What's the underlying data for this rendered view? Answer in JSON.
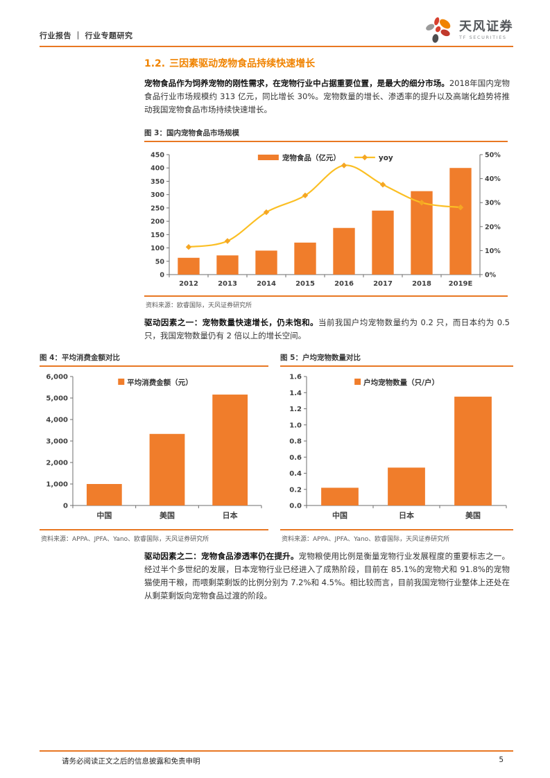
{
  "header": {
    "doc_type": "行业报告",
    "separator": "｜",
    "doc_subtype": "行业专题研究",
    "logo": {
      "name_cn": "天风证券",
      "name_en": "TF SECURITIES"
    }
  },
  "section": {
    "number": "1.2.",
    "title": "三因素驱动宠物食品持续快速增长"
  },
  "paragraphs": {
    "p1_bold": "宠物食品作为饲养宠物的刚性需求，在宠物行业中占据重要位置，是最大的细分市场。",
    "p1_rest": "2018年国内宠物食品行业市场规模约 313 亿元，同比增长 30%。宠物数量的增长、渗透率的提升以及高端化趋势将推动我国宠物食品市场持续快速增长。",
    "p2_bold": "驱动因素之一：宠物数量快速增长，仍未饱和。",
    "p2_rest": "当前我国户均宠物数量约为 0.2 只，而日本约为 0.5 只，我国宠物数量仍有 2 倍以上的增长空间。",
    "p3_bold": "驱动因素之二：宠物食品渗透率仍在提升。",
    "p3_rest": "宠物粮使用比例是衡量宠物行业发展程度的重要标志之一。经过半个多世纪的发展，日本宠物行业已经进入了成熟阶段，目前在 85.1%的宠物犬和 91.8%的宠物猫使用干粮，而喂剩菜剩饭的比例分别为 7.2%和 4.5%。相比较而言，目前我国宠物行业整体上还处在从剩菜剩饭向宠物食品过渡的阶段。"
  },
  "chart_data": [
    {
      "id": "fig3",
      "type": "bar+line",
      "title": "图 3：国内宠物食品市场规模",
      "categories": [
        "2012",
        "2013",
        "2014",
        "2015",
        "2016",
        "2017",
        "2018",
        "2019E"
      ],
      "series": [
        {
          "name": "宠物食品（亿元）",
          "type": "bar",
          "axis": "left",
          "values": [
            63,
            72,
            90,
            120,
            175,
            240,
            313,
            400
          ]
        },
        {
          "name": "yoy",
          "type": "line",
          "axis": "right",
          "values": [
            11.5,
            14,
            26,
            33,
            45.5,
            37.5,
            30,
            28
          ]
        }
      ],
      "left_axis": {
        "min": 0,
        "max": 450,
        "step": 50,
        "format": "int"
      },
      "right_axis": {
        "min": 0,
        "max": 50,
        "step": 10,
        "format": "percent"
      },
      "legend_position": "top",
      "grid": false,
      "source": "资料来源：欧睿国际，天风证券研究所"
    },
    {
      "id": "fig4",
      "type": "bar",
      "title": "图 4：平均消费金额对比",
      "legend": "平均消费金额（元）",
      "categories": [
        "中国",
        "美国",
        "日本"
      ],
      "values": [
        1000,
        3330,
        5160
      ],
      "y_axis": {
        "min": 0,
        "max": 6000,
        "step": 1000,
        "format": "comma"
      },
      "grid": false,
      "source": "资料来源：APPA、JPFA、Yano、欧睿国际，天风证券研究所"
    },
    {
      "id": "fig5",
      "type": "bar",
      "title": "图 5：户均宠物数量对比",
      "legend": "户均宠物数量（只/户）",
      "categories": [
        "中国",
        "日本",
        "美国"
      ],
      "values": [
        0.22,
        0.47,
        1.35
      ],
      "y_axis": {
        "min": 0,
        "max": 1.6,
        "step": 0.2,
        "format": "decimal1"
      },
      "grid": false,
      "source": "资料来源：APPA、JPFA、Yano、欧睿国际，天风证券研究所"
    }
  ],
  "footer": {
    "disclaimer": "请务必阅读正文之后的信息披露和免责申明",
    "page_number": "5"
  },
  "colors": {
    "accent_orange": "#E87722",
    "section_orange": "#F08300",
    "bar_orange": "#F07D2B",
    "line_yellow": "#FBBF24",
    "marker_gold": "#F5A623",
    "axis_gray": "#6e6e6e",
    "label_gray": "#404040"
  }
}
